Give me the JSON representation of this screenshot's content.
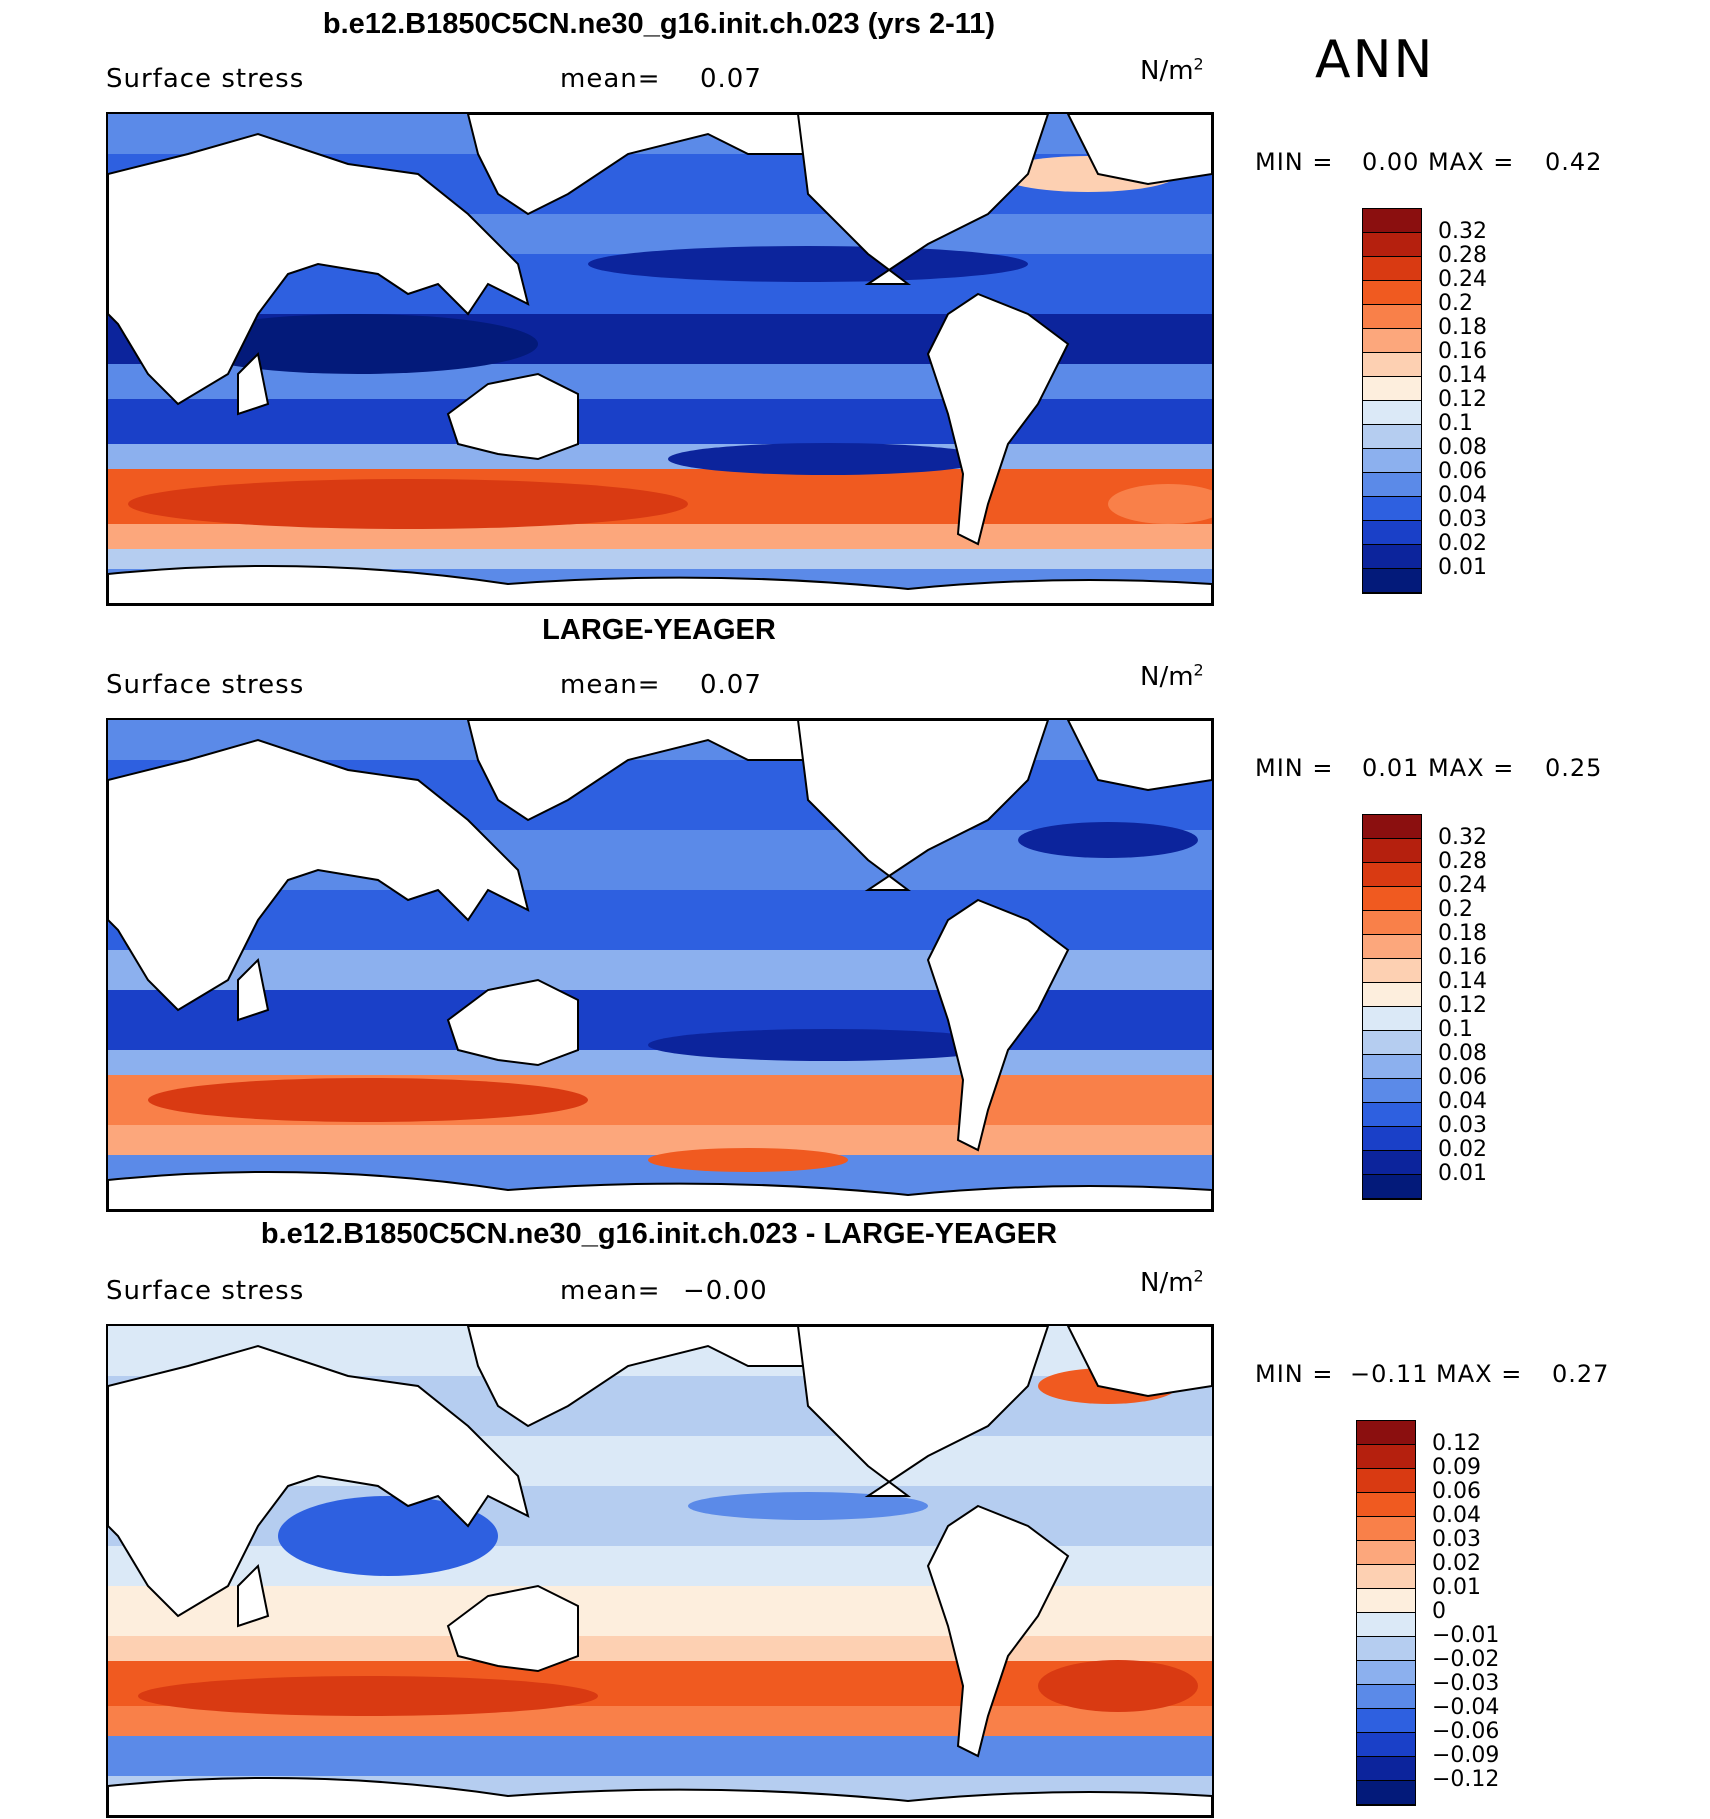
{
  "season": "ANN",
  "panels": [
    {
      "title": "b.e12.B1850C5CN.ne30_g16.init.ch.023 (yrs 2-11)",
      "variable": "Surface stress",
      "mean_label": "mean=",
      "mean_value": "0.07",
      "units": "N/m",
      "units_sup": "2",
      "min_label": "MIN =",
      "min_value": "0.00",
      "max_label": "MAX =",
      "max_value": "0.42",
      "colorbar": {
        "labels": [
          "0.32",
          "0.28",
          "0.24",
          "0.2",
          "0.18",
          "0.16",
          "0.14",
          "0.12",
          "0.1",
          "0.08",
          "0.06",
          "0.04",
          "0.03",
          "0.02",
          "0.01"
        ],
        "colors": [
          "#8b0f0f",
          "#b5200e",
          "#d93a12",
          "#f05a20",
          "#f98049",
          "#fca77c",
          "#fdd0b2",
          "#fdeedd",
          "#dbe9f7",
          "#b5cdf0",
          "#8cb0ee",
          "#5b8ae8",
          "#2e60e0",
          "#1a40c8",
          "#0c249c",
          "#031a7a"
        ]
      }
    },
    {
      "title": "LARGE-YEAGER",
      "variable": "Surface stress",
      "mean_label": "mean=",
      "mean_value": "0.07",
      "units": "N/m",
      "units_sup": "2",
      "min_label": "MIN =",
      "min_value": "0.01",
      "max_label": "MAX =",
      "max_value": "0.25",
      "colorbar": {
        "labels": [
          "0.32",
          "0.28",
          "0.24",
          "0.2",
          "0.18",
          "0.16",
          "0.14",
          "0.12",
          "0.1",
          "0.08",
          "0.06",
          "0.04",
          "0.03",
          "0.02",
          "0.01"
        ],
        "colors": [
          "#8b0f0f",
          "#b5200e",
          "#d93a12",
          "#f05a20",
          "#f98049",
          "#fca77c",
          "#fdd0b2",
          "#fdeedd",
          "#dbe9f7",
          "#b5cdf0",
          "#8cb0ee",
          "#5b8ae8",
          "#2e60e0",
          "#1a40c8",
          "#0c249c",
          "#031a7a"
        ]
      }
    },
    {
      "title": "b.e12.B1850C5CN.ne30_g16.init.ch.023 - LARGE-YEAGER",
      "variable": "Surface stress",
      "mean_label": "mean=",
      "mean_value": "−0.00",
      "units": "N/m",
      "units_sup": "2",
      "min_label": "MIN =",
      "min_value": "−0.11",
      "max_label": "MAX =",
      "max_value": "0.27",
      "colorbar": {
        "labels": [
          "0.12",
          "0.09",
          "0.06",
          "0.04",
          "0.03",
          "0.02",
          "0.01",
          "0",
          "−0.01",
          "−0.02",
          "−0.03",
          "−0.04",
          "−0.06",
          "−0.09",
          "−0.12"
        ],
        "colors": [
          "#8b0f0f",
          "#b5200e",
          "#d93a12",
          "#f05a20",
          "#f98049",
          "#fca77c",
          "#fdd0b2",
          "#fdeedd",
          "#dbe9f7",
          "#b5cdf0",
          "#8cb0ee",
          "#5b8ae8",
          "#2e60e0",
          "#1a40c8",
          "#0c249c",
          "#031a7a"
        ]
      }
    }
  ]
}
